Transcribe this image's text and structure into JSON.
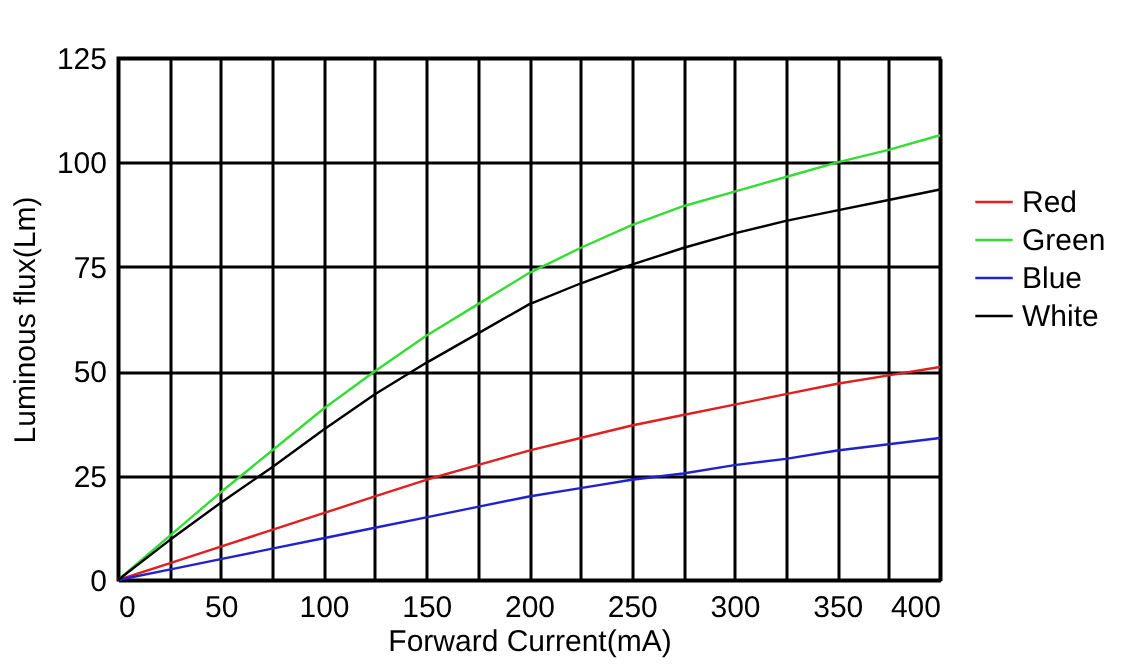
{
  "chart_data": {
    "type": "line",
    "xlabel": "Forward Current(mA)",
    "ylabel": "Luminous flux(Lm)",
    "x": [
      0,
      25,
      50,
      75,
      100,
      125,
      150,
      175,
      200,
      225,
      250,
      275,
      300,
      325,
      350,
      375,
      400
    ],
    "series": [
      {
        "name": "Red",
        "color": "#e02020",
        "values": [
          0,
          4,
          8,
          12,
          16,
          20,
          24,
          27.5,
          31,
          34,
          37,
          39.5,
          42,
          44.5,
          47,
          49,
          51
        ]
      },
      {
        "name": "Green",
        "color": "#33dd33",
        "values": [
          0,
          10.5,
          21,
          31,
          41,
          50,
          58.5,
          66,
          73.5,
          79.5,
          85,
          89.5,
          93,
          96.5,
          100,
          103,
          106.5
        ]
      },
      {
        "name": "Blue",
        "color": "#2222cc",
        "values": [
          0,
          2.5,
          5,
          7.5,
          10,
          12.5,
          15,
          17.5,
          20,
          22,
          24,
          25.5,
          27.5,
          29,
          31,
          32.5,
          34
        ]
      },
      {
        "name": "White",
        "color": "#000000",
        "values": [
          0,
          9.5,
          18.5,
          27,
          36,
          44.5,
          52,
          59,
          66,
          71,
          75.5,
          79.5,
          83,
          86,
          88.5,
          91,
          93.5
        ]
      }
    ],
    "xlim": [
      0,
      400
    ],
    "ylim": [
      0,
      125
    ],
    "xticks": [
      0,
      {
        "value": 25,
        "label": null
      },
      50,
      {
        "value": 75,
        "label": null
      },
      100,
      {
        "value": 125,
        "label": null
      },
      150,
      {
        "value": 175,
        "label": null
      },
      200,
      {
        "value": 225,
        "label": null
      },
      250,
      {
        "value": 275,
        "label": null
      },
      300,
      {
        "value": 325,
        "label": null
      },
      350,
      {
        "value": 375,
        "label": null
      },
      400
    ],
    "yticks": [
      0,
      25,
      50,
      75,
      100,
      125
    ],
    "grid": true,
    "legend": "right",
    "marker": "none",
    "line_style": "solid"
  }
}
